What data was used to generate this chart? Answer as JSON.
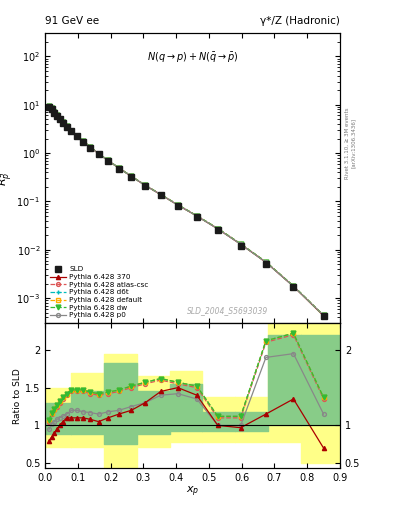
{
  "title_left": "91 GeV ee",
  "title_right": "γ*/Z (Hadronic)",
  "ylabel_main": "$R^{q}_{p}$",
  "ylabel_ratio": "Ratio to SLD",
  "xlabel": "$x_{p}$",
  "inner_label": "$N(q \\rightarrow p)+N(\\bar{q} \\rightarrow \\bar{p})$",
  "watermark": "SLD_2004_S5693039",
  "right_label1": "Rivet 3.1.10, ≥ 3M events",
  "right_label2": "[arXiv:1306.3436]",
  "xp": [
    0.012,
    0.02,
    0.028,
    0.036,
    0.044,
    0.054,
    0.066,
    0.08,
    0.097,
    0.116,
    0.138,
    0.163,
    0.192,
    0.225,
    0.263,
    0.305,
    0.353,
    0.405,
    0.463,
    0.527,
    0.597,
    0.674,
    0.758,
    0.85
  ],
  "sld_y": [
    9.1,
    8.2,
    6.8,
    5.8,
    5.0,
    4.2,
    3.5,
    2.8,
    2.25,
    1.72,
    1.3,
    0.95,
    0.68,
    0.47,
    0.32,
    0.21,
    0.135,
    0.082,
    0.048,
    0.026,
    0.012,
    0.0052,
    0.0017,
    0.00042
  ],
  "py370_y": [
    9.2,
    8.3,
    6.9,
    5.9,
    5.05,
    4.25,
    3.55,
    2.85,
    2.28,
    1.75,
    1.32,
    0.97,
    0.7,
    0.49,
    0.33,
    0.215,
    0.138,
    0.084,
    0.05,
    0.027,
    0.013,
    0.0055,
    0.00175,
    0.00043
  ],
  "py_atl_y": [
    9.3,
    8.4,
    7.0,
    6.0,
    5.1,
    4.3,
    3.6,
    2.88,
    2.3,
    1.77,
    1.33,
    0.975,
    0.705,
    0.492,
    0.332,
    0.217,
    0.139,
    0.085,
    0.0505,
    0.0275,
    0.0132,
    0.0056,
    0.00178,
    0.00044
  ],
  "py_d6t_y": [
    9.3,
    8.4,
    7.0,
    6.0,
    5.1,
    4.3,
    3.6,
    2.88,
    2.3,
    1.77,
    1.33,
    0.975,
    0.705,
    0.492,
    0.332,
    0.217,
    0.139,
    0.085,
    0.0505,
    0.0275,
    0.0132,
    0.0056,
    0.00178,
    0.00044
  ],
  "py_def_y": [
    9.3,
    8.4,
    7.0,
    6.0,
    5.1,
    4.3,
    3.6,
    2.88,
    2.3,
    1.77,
    1.33,
    0.975,
    0.705,
    0.492,
    0.332,
    0.217,
    0.139,
    0.085,
    0.0505,
    0.0275,
    0.0132,
    0.0056,
    0.00178,
    0.00044
  ],
  "py_dw_y": [
    9.3,
    8.4,
    7.0,
    6.0,
    5.1,
    4.3,
    3.6,
    2.88,
    2.3,
    1.77,
    1.33,
    0.975,
    0.705,
    0.492,
    0.332,
    0.217,
    0.139,
    0.085,
    0.0505,
    0.0275,
    0.0132,
    0.0056,
    0.00178,
    0.00044
  ],
  "py_p0_y": [
    9.2,
    8.3,
    6.9,
    5.9,
    5.05,
    4.25,
    3.55,
    2.85,
    2.28,
    1.75,
    1.32,
    0.97,
    0.7,
    0.49,
    0.33,
    0.215,
    0.138,
    0.084,
    0.05,
    0.027,
    0.013,
    0.0055,
    0.00175,
    0.00044
  ],
  "ratio_xp": [
    0.012,
    0.02,
    0.028,
    0.036,
    0.044,
    0.054,
    0.066,
    0.08,
    0.097,
    0.116,
    0.138,
    0.163,
    0.192,
    0.225,
    0.263,
    0.305,
    0.353,
    0.405,
    0.463,
    0.527,
    0.597,
    0.674,
    0.758,
    0.85
  ],
  "r370": [
    0.8,
    0.85,
    0.9,
    0.95,
    1.0,
    1.05,
    1.1,
    1.1,
    1.1,
    1.1,
    1.08,
    1.05,
    1.1,
    1.15,
    1.2,
    1.3,
    1.45,
    1.5,
    1.4,
    1.0,
    0.97,
    1.15,
    1.35,
    0.7
  ],
  "r_atl": [
    1.05,
    1.15,
    1.2,
    1.25,
    1.3,
    1.35,
    1.4,
    1.45,
    1.45,
    1.45,
    1.42,
    1.4,
    1.42,
    1.45,
    1.5,
    1.55,
    1.6,
    1.55,
    1.5,
    1.1,
    1.1,
    2.1,
    2.2,
    1.35
  ],
  "r_d6t": [
    1.07,
    1.17,
    1.22,
    1.27,
    1.32,
    1.37,
    1.42,
    1.47,
    1.47,
    1.47,
    1.44,
    1.42,
    1.44,
    1.47,
    1.52,
    1.57,
    1.62,
    1.57,
    1.52,
    1.12,
    1.12,
    2.12,
    2.22,
    1.37
  ],
  "r_def": [
    1.07,
    1.17,
    1.22,
    1.27,
    1.32,
    1.37,
    1.42,
    1.47,
    1.47,
    1.47,
    1.44,
    1.42,
    1.44,
    1.47,
    1.52,
    1.57,
    1.62,
    1.57,
    1.52,
    1.12,
    1.12,
    2.12,
    2.22,
    1.37
  ],
  "r_dw": [
    1.07,
    1.17,
    1.22,
    1.27,
    1.32,
    1.37,
    1.42,
    1.47,
    1.47,
    1.47,
    1.44,
    1.42,
    1.44,
    1.47,
    1.52,
    1.57,
    1.62,
    1.57,
    1.52,
    1.12,
    1.12,
    2.12,
    2.22,
    1.37
  ],
  "r_p0": [
    0.95,
    1.02,
    1.05,
    1.08,
    1.1,
    1.12,
    1.15,
    1.2,
    1.2,
    1.18,
    1.17,
    1.15,
    1.18,
    1.2,
    1.25,
    1.3,
    1.4,
    1.42,
    1.35,
    1.0,
    1.0,
    1.9,
    1.95,
    1.15
  ],
  "colors": {
    "sld": "#1a1a1a",
    "py370": "#aa0000",
    "py_atl": "#dd5555",
    "py_d6t": "#00bbbb",
    "py_def": "#ffaa00",
    "py_dw": "#33bb33",
    "py_p0": "#888888"
  },
  "band_edges": [
    0.0,
    0.08,
    0.18,
    0.28,
    0.38,
    0.48,
    0.58,
    0.68,
    0.78,
    0.9
  ],
  "green_lo": [
    0.88,
    0.88,
    0.75,
    0.88,
    0.92,
    0.92,
    0.92,
    1.0,
    1.0,
    1.0
  ],
  "green_hi": [
    1.3,
    1.45,
    1.82,
    1.45,
    1.55,
    1.18,
    1.18,
    2.2,
    2.2,
    2.2
  ],
  "yellow_lo": [
    0.72,
    0.72,
    0.45,
    0.72,
    0.78,
    0.78,
    0.78,
    0.78,
    0.5,
    0.5
  ],
  "yellow_hi": [
    1.5,
    1.7,
    1.95,
    1.65,
    1.72,
    1.38,
    1.38,
    2.38,
    2.38,
    2.38
  ],
  "ylim_main": [
    0.0003,
    300.0
  ],
  "xlim": [
    0.0,
    0.9
  ],
  "ylim_ratio": [
    0.43,
    2.35
  ]
}
